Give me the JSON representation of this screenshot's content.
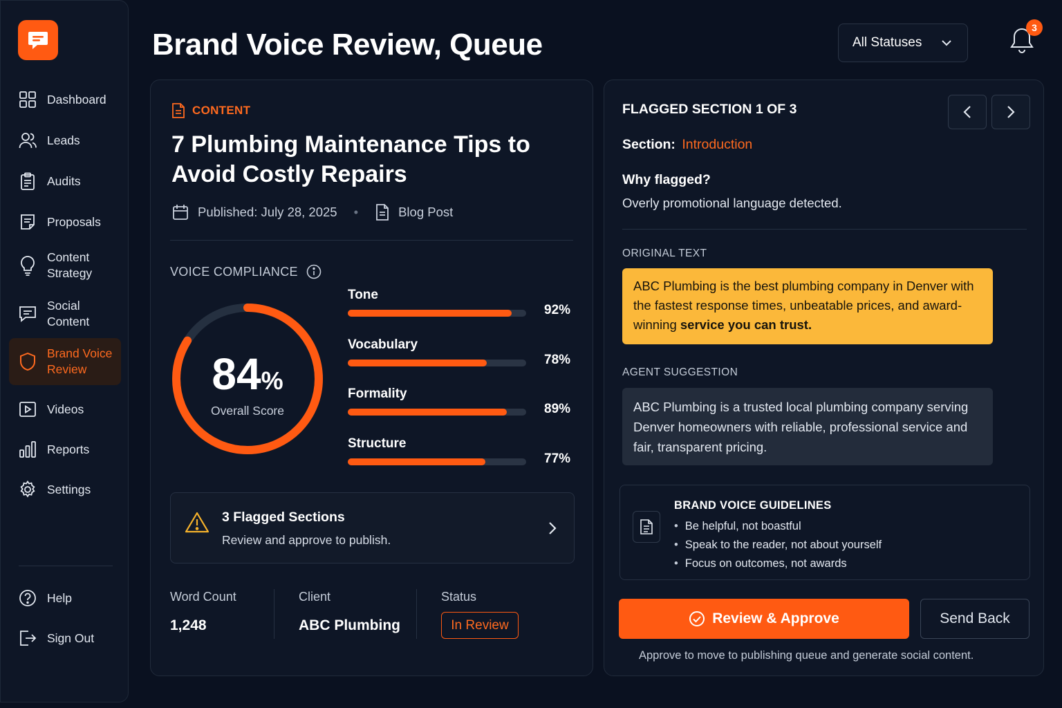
{
  "app": {
    "logo_icon": "chat-bubble-icon",
    "accent": "#ff5a12"
  },
  "sidebar": {
    "items": [
      {
        "label": "Dashboard",
        "icon": "grid-icon"
      },
      {
        "label": "Leads",
        "icon": "users-icon"
      },
      {
        "label": "Audits",
        "icon": "clipboard-icon"
      },
      {
        "label": "Proposals",
        "icon": "document-icon"
      },
      {
        "label": "Content\nStrategy",
        "icon": "lightbulb-icon"
      },
      {
        "label": "Social\nContent",
        "icon": "message-icon"
      },
      {
        "label": "Brand Voice\nReview",
        "icon": "shield-icon",
        "active": true
      },
      {
        "label": "Videos",
        "icon": "play-icon"
      },
      {
        "label": "Reports",
        "icon": "bar-chart-icon"
      },
      {
        "label": "Settings",
        "icon": "gear-icon"
      }
    ],
    "footer": [
      {
        "label": "Help",
        "icon": "help-icon"
      },
      {
        "label": "Sign Out",
        "icon": "sign-out-icon"
      }
    ]
  },
  "header": {
    "title": "Brand Voice Review, Queue",
    "status_filter": "All Statuses",
    "notification_count": "3"
  },
  "content": {
    "tag": "CONTENT",
    "title": "7 Plumbing Maintenance Tips to Avoid Costly Repairs",
    "published": "Published: July 28, 2025",
    "type": "Blog Post",
    "voice_compliance_label": "VOICE COMPLIANCE",
    "overall_score": "84",
    "overall_score_unit": "%",
    "overall_score_fraction": 0.84,
    "overall_caption": "Overall Score",
    "metrics": [
      {
        "name": "Tone",
        "value": 92,
        "label": "92%"
      },
      {
        "name": "Vocabulary",
        "value": 78,
        "label": "78%"
      },
      {
        "name": "Formality",
        "value": 89,
        "label": "89%"
      },
      {
        "name": "Structure",
        "value": 77,
        "label": "77%"
      }
    ],
    "flagged": {
      "title": "3 Flagged Sections",
      "subtitle": "Review and approve to publish."
    },
    "stats": {
      "word_count_label": "Word Count",
      "word_count": "1,248",
      "client_label": "Client",
      "client": "ABC Plumbing",
      "status_label": "Status",
      "status": "In Review"
    }
  },
  "review": {
    "heading": "FLAGGED SECTION 1 OF 3",
    "section_label": "Section:",
    "section_value": "Introduction",
    "why_label": "Why flagged?",
    "why_text": "Overly promotional language detected.",
    "original_label": "ORIGINAL TEXT",
    "original_text_plain": "ABC Plumbing is the best plumbing company in Denver with the fastest response times, unbeatable prices, and award-winning ",
    "original_text_bold": "service you can trust.",
    "suggestion_label": "AGENT SUGGESTION",
    "suggestion_text": "ABC Plumbing is a trusted local plumbing company serving Denver homeowners with reliable, professional service and fair, transparent pricing.",
    "guidelines_title": "BRAND VOICE GUIDELINES",
    "guidelines": [
      "Be helpful, not boastful",
      "Speak to the reader, not about yourself",
      "Focus on outcomes, not awards"
    ],
    "approve_label": "Review & Approve",
    "send_back_label": "Send Back",
    "footnote": "Approve to move to publishing queue and generate social content."
  }
}
